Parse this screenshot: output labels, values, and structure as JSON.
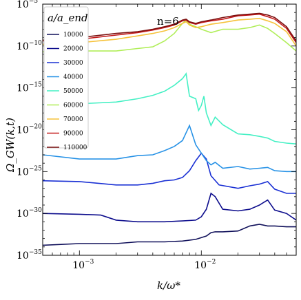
{
  "chart_data": {
    "type": "line",
    "xscale": "log",
    "yscale": "log",
    "xlim": [
      0.0005,
      0.06
    ],
    "ylim": [
      1e-35,
      1e-05
    ],
    "xlabel": "k/ω*",
    "ylabel": "Ω_GW(k,t)",
    "annotation": "n=6",
    "legend_title": "a/a_end",
    "legend_position": "upper-left",
    "grid": false,
    "x_ticks": [
      {
        "value": 0.001,
        "base": "10",
        "exp": "−3"
      },
      {
        "value": 0.01,
        "base": "10",
        "exp": "−2"
      }
    ],
    "y_ticks": [
      {
        "value": -5,
        "base": "10",
        "exp": "−5"
      },
      {
        "value": -10,
        "base": "10",
        "exp": "−10"
      },
      {
        "value": -15,
        "base": "10",
        "exp": "−15"
      },
      {
        "value": -20,
        "base": "10",
        "exp": "−20"
      },
      {
        "value": -25,
        "base": "10",
        "exp": "−25"
      },
      {
        "value": -30,
        "base": "10",
        "exp": "−30"
      },
      {
        "value": -35,
        "base": "10",
        "exp": "−35"
      }
    ],
    "series": [
      {
        "name": "10000",
        "color": "#10105a",
        "x": [
          0.0005,
          0.001,
          0.002,
          0.003,
          0.005,
          0.007,
          0.009,
          0.011,
          0.012,
          0.013,
          0.015,
          0.02,
          0.025,
          0.03,
          0.035,
          0.04,
          0.05,
          0.06
        ],
        "log_y": [
          -33.8,
          -33.6,
          -33.6,
          -33.4,
          -33.4,
          -33.3,
          -33.1,
          -32.7,
          -32.3,
          -32.2,
          -32.2,
          -32.1,
          -31.5,
          -31.3,
          -31.5,
          -31.5,
          -31.6,
          -31.6
        ]
      },
      {
        "name": "20000",
        "color": "#0c0c8c",
        "x": [
          0.0005,
          0.001,
          0.0015,
          0.002,
          0.003,
          0.005,
          0.007,
          0.009,
          0.01,
          0.011,
          0.012,
          0.013,
          0.015,
          0.02,
          0.025,
          0.03,
          0.035,
          0.04,
          0.05,
          0.06
        ],
        "log_y": [
          -30.0,
          -30.1,
          -30.2,
          -30.8,
          -31.0,
          -31.0,
          -30.9,
          -30.8,
          -30.4,
          -29.5,
          -27.6,
          -28.0,
          -29.5,
          -29.7,
          -29.5,
          -29.0,
          -28.4,
          -29.6,
          -30.0,
          -30.8
        ]
      },
      {
        "name": "30000",
        "color": "#1a30d4",
        "x": [
          0.0005,
          0.001,
          0.002,
          0.003,
          0.004,
          0.005,
          0.006,
          0.007,
          0.008,
          0.009,
          0.01,
          0.011,
          0.012,
          0.014,
          0.02,
          0.025,
          0.03,
          0.035,
          0.04,
          0.05,
          0.06
        ],
        "log_y": [
          -26.1,
          -26.2,
          -26.6,
          -26.6,
          -26.4,
          -26.1,
          -26.0,
          -25.7,
          -24.9,
          -23.7,
          -22.8,
          -23.5,
          -25.5,
          -26.6,
          -27.0,
          -26.7,
          -26.5,
          -26.2,
          -27.1,
          -27.6,
          -27.6
        ]
      },
      {
        "name": "40000",
        "color": "#2792e6",
        "x": [
          0.0005,
          0.001,
          0.002,
          0.003,
          0.004,
          0.005,
          0.006,
          0.007,
          0.008,
          0.009,
          0.01,
          0.011,
          0.012,
          0.013,
          0.015,
          0.02,
          0.025,
          0.03,
          0.035,
          0.04,
          0.05,
          0.06
        ],
        "log_y": [
          -23.0,
          -23.5,
          -23.5,
          -23.1,
          -23.0,
          -22.5,
          -22.0,
          -21.3,
          -19.5,
          -21.8,
          -22.8,
          -23.7,
          -24.2,
          -23.9,
          -24.6,
          -24.4,
          -24.7,
          -24.6,
          -24.5,
          -24.9,
          -25.0,
          -25.0
        ]
      },
      {
        "name": "50000",
        "color": "#44f0c4",
        "x": [
          0.0005,
          0.001,
          0.002,
          0.003,
          0.004,
          0.005,
          0.006,
          0.007,
          0.0075,
          0.008,
          0.009,
          0.0095,
          0.01,
          0.0105,
          0.011,
          0.012,
          0.013,
          0.015,
          0.02,
          0.025,
          0.03,
          0.035,
          0.04,
          0.05,
          0.06
        ],
        "log_y": [
          -17.0,
          -16.9,
          -16.7,
          -16.3,
          -15.9,
          -15.4,
          -14.7,
          -13.9,
          -13.3,
          -16.0,
          -16.3,
          -17.7,
          -17.1,
          -16.0,
          -18.0,
          -19.5,
          -18.5,
          -19.4,
          -20.5,
          -20.6,
          -20.8,
          -21.0,
          -21.4,
          -21.6,
          -21.7
        ]
      },
      {
        "name": "60000",
        "color": "#b0ee58",
        "x": [
          0.0005,
          0.001,
          0.002,
          0.003,
          0.004,
          0.005,
          0.006,
          0.007,
          0.0075,
          0.008,
          0.009,
          0.01,
          0.012,
          0.015,
          0.02,
          0.025,
          0.03,
          0.035,
          0.04,
          0.05,
          0.06
        ],
        "log_y": [
          -10.7,
          -10.6,
          -10.6,
          -10.3,
          -10.1,
          -9.4,
          -8.5,
          -7.3,
          -6.9,
          -7.4,
          -7.7,
          -8.0,
          -8.4,
          -8.0,
          -8.0,
          -7.8,
          -7.5,
          -7.9,
          -8.5,
          -9.6,
          -10.6
        ]
      },
      {
        "name": "70000",
        "color": "#f6c23a",
        "x": [
          0.0005,
          0.001,
          0.002,
          0.003,
          0.004,
          0.005,
          0.006,
          0.007,
          0.0075,
          0.008,
          0.009,
          0.01,
          0.012,
          0.015,
          0.02,
          0.025,
          0.03,
          0.035,
          0.04,
          0.05,
          0.06
        ],
        "log_y": [
          -9.8,
          -9.6,
          -9.2,
          -8.8,
          -8.5,
          -8.2,
          -7.8,
          -7.3,
          -7.1,
          -7.5,
          -7.8,
          -7.7,
          -7.4,
          -7.2,
          -6.9,
          -6.8,
          -6.7,
          -7.0,
          -7.3,
          -8.3,
          -10.0
        ]
      },
      {
        "name": "90000",
        "color": "#c41a1a",
        "x": [
          0.0005,
          0.001,
          0.002,
          0.003,
          0.004,
          0.005,
          0.006,
          0.007,
          0.0075,
          0.008,
          0.009,
          0.01,
          0.012,
          0.015,
          0.02,
          0.025,
          0.03,
          0.035,
          0.04,
          0.05,
          0.06
        ],
        "log_y": [
          -9.4,
          -9.2,
          -8.7,
          -8.4,
          -8.1,
          -7.8,
          -7.5,
          -7.0,
          -6.9,
          -7.2,
          -7.4,
          -7.2,
          -7.0,
          -6.8,
          -6.4,
          -6.3,
          -6.2,
          -6.5,
          -6.8,
          -7.9,
          -9.6
        ]
      },
      {
        "name": "110000",
        "color": "#7c1010",
        "x": [
          0.0005,
          0.001,
          0.002,
          0.003,
          0.004,
          0.005,
          0.006,
          0.007,
          0.0075,
          0.008,
          0.009,
          0.01,
          0.012,
          0.015,
          0.02,
          0.025,
          0.03,
          0.035,
          0.04,
          0.05,
          0.06
        ],
        "log_y": [
          -9.3,
          -9.0,
          -8.5,
          -8.3,
          -8.0,
          -7.7,
          -7.4,
          -6.9,
          -6.8,
          -7.1,
          -7.3,
          -7.1,
          -6.9,
          -6.6,
          -6.3,
          -6.2,
          -6.1,
          -6.3,
          -6.6,
          -7.7,
          -9.4
        ]
      }
    ]
  }
}
